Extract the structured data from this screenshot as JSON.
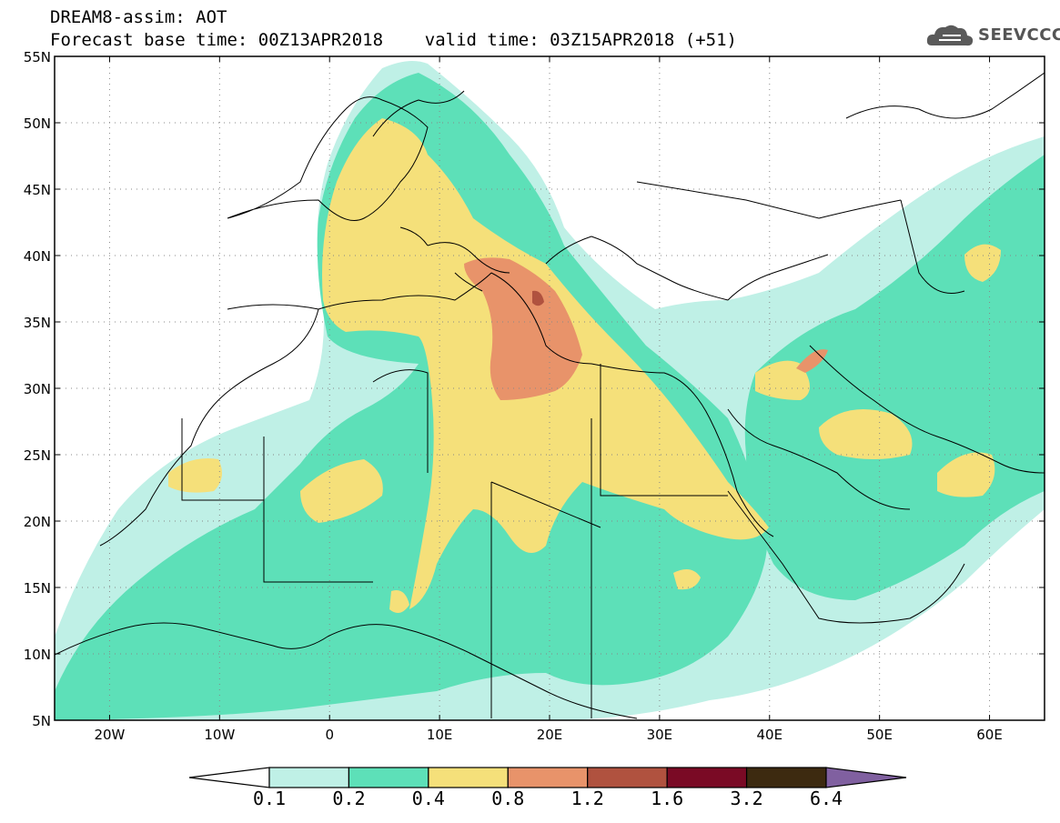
{
  "title": {
    "line1": "DREAM8-assim: AOT",
    "line2": "Forecast base time: 00Z13APR2018    valid time: 03Z15APR2018 (+51)"
  },
  "logo": {
    "text": "SEEVCCC",
    "icon": "cloud-icon"
  },
  "map": {
    "extent": {
      "lon": [
        -25,
        65
      ],
      "lat": [
        5,
        55
      ]
    },
    "lat_labels": [
      {
        "lat": 55,
        "label": "55N"
      },
      {
        "lat": 50,
        "label": "50N"
      },
      {
        "lat": 45,
        "label": "45N"
      },
      {
        "lat": 40,
        "label": "40N"
      },
      {
        "lat": 35,
        "label": "35N"
      },
      {
        "lat": 30,
        "label": "30N"
      },
      {
        "lat": 25,
        "label": "25N"
      },
      {
        "lat": 20,
        "label": "20N"
      },
      {
        "lat": 15,
        "label": "15N"
      },
      {
        "lat": 10,
        "label": "10N"
      },
      {
        "lat": 5,
        "label": "5N"
      }
    ],
    "lon_labels": [
      {
        "lon": -20,
        "label": "20W"
      },
      {
        "lon": -10,
        "label": "10W"
      },
      {
        "lon": 0,
        "label": "0"
      },
      {
        "lon": 10,
        "label": "10E"
      },
      {
        "lon": 20,
        "label": "20E"
      },
      {
        "lon": 30,
        "label": "30E"
      },
      {
        "lon": 40,
        "label": "40E"
      },
      {
        "lon": 50,
        "label": "50E"
      },
      {
        "lon": 60,
        "label": "60E"
      }
    ],
    "grid": "dotted"
  },
  "colorbar": {
    "levels": [
      "0.1",
      "0.2",
      "0.4",
      "0.8",
      "1.2",
      "1.6",
      "3.2",
      "6.4"
    ],
    "colors": [
      "#ffffff",
      "#bff0e6",
      "#5de0b8",
      "#f5e07a",
      "#e8936a",
      "#b0523f",
      "#7a0a25",
      "#3d2a10",
      "#8060a0"
    ]
  }
}
